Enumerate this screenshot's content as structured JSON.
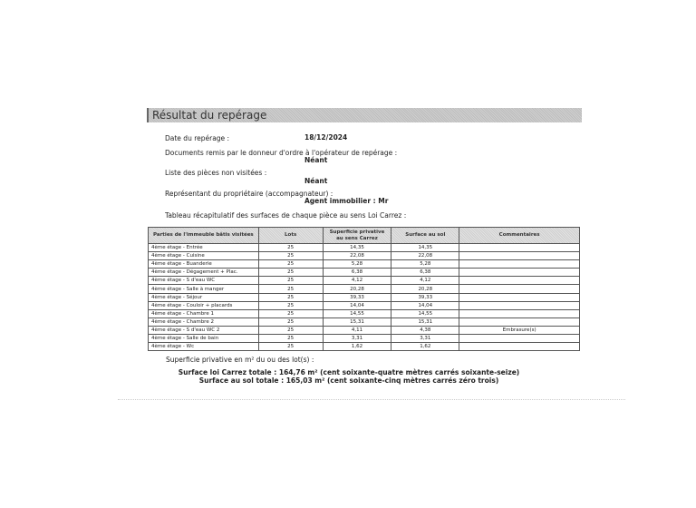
{
  "section_title": "Résultat du repérage",
  "fields": {
    "date_label": "Date du repérage :",
    "date_value": "18/12/2024",
    "documents_label": "Documents remis par le donneur d'ordre à l'opérateur de repérage :",
    "documents_value": "Néant",
    "unvisited_label": "Liste des pièces non visitées :",
    "unvisited_value": "Néant",
    "representative_label": "Représentant du propriétaire (accompagnateur) :",
    "representative_value": "Agent immobilier : Mr",
    "table_intro": "Tableau récapitulatif des surfaces de chaque pièce au sens Loi Carrez :"
  },
  "table": {
    "headers": [
      "Parties de l'immeuble bâtis visitées",
      "Lots",
      "Superficie privative au sens Carrez",
      "Surface au sol",
      "Commentaires"
    ],
    "rows": [
      [
        "4ème étage - Entrée",
        "25",
        "14,35",
        "14,35",
        ""
      ],
      [
        "4ème étage - Cuisine",
        "25",
        "22,08",
        "22,08",
        ""
      ],
      [
        "4ème étage - Buanderie",
        "25",
        "5,28",
        "5,28",
        ""
      ],
      [
        "4ème étage - Dégagement + Plac.",
        "25",
        "6,38",
        "6,38",
        ""
      ],
      [
        "4ème étage - S d'eau WC",
        "25",
        "4,12",
        "4,12",
        ""
      ],
      [
        "4ème étage - Salle à manger",
        "25",
        "20,28",
        "20,28",
        ""
      ],
      [
        "4ème étage - Séjour",
        "25",
        "39,33",
        "39,33",
        ""
      ],
      [
        "4ème étage - Couloir + placards",
        "25",
        "14,04",
        "14,04",
        ""
      ],
      [
        "4ème étage - Chambre 1",
        "25",
        "14,55",
        "14,55",
        ""
      ],
      [
        "4ème étage - Chambre 2",
        "25",
        "15,31",
        "15,31",
        ""
      ],
      [
        "4ème étage - S d'eau WC 2",
        "25",
        "4,11",
        "4,38",
        "Embrasure(s)"
      ],
      [
        "4ème étage - Salle de bain",
        "25",
        "3,31",
        "3,31",
        ""
      ],
      [
        "4ème étage - Wc",
        "25",
        "1,62",
        "1,62",
        ""
      ]
    ]
  },
  "summary": {
    "label": "Superficie privative en m² du ou des lot(s) :",
    "carrez_total": "Surface loi Carrez totale : 164,76 m² (cent soixante-quatre mètres carrés soixante-seize)",
    "sol_total": "Surface au sol totale : 165,03 m² (cent soixante-cinq mètres carrés zéro trois)"
  }
}
